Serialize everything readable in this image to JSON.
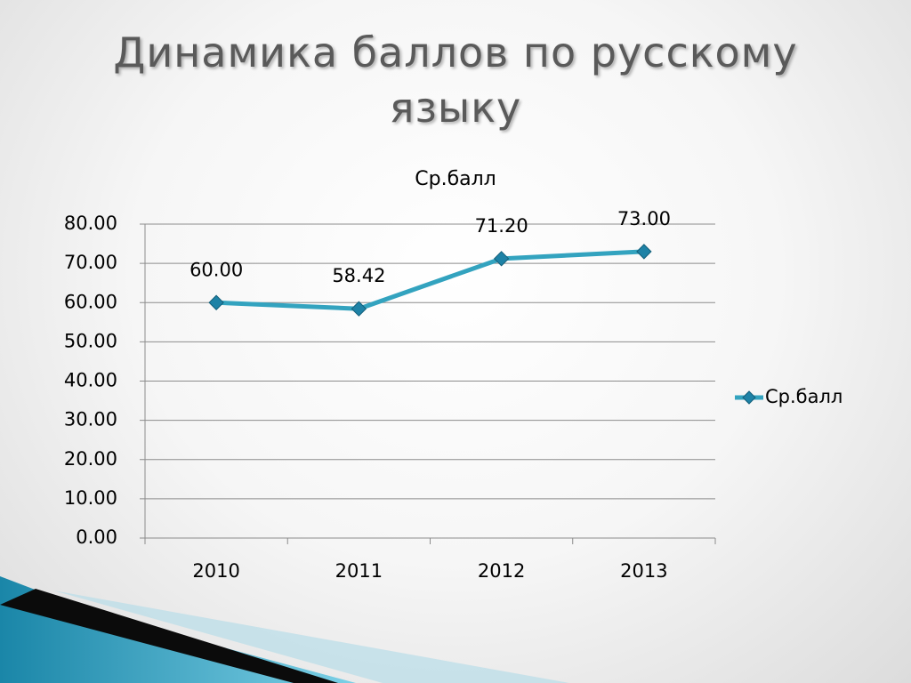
{
  "chart_data": {
    "type": "line",
    "title": "Динамика баллов по русскому языку",
    "subtitle": "Ср.балл",
    "categories": [
      "2010",
      "2011",
      "2012",
      "2013"
    ],
    "series": [
      {
        "name": "Ср.балл",
        "color": "#33a3bf",
        "values": [
          60,
          58.42,
          71.2,
          73
        ],
        "value_labels": [
          "60.00",
          "58.42",
          "71.20",
          "73.00"
        ]
      }
    ],
    "ylim": [
      0,
      80
    ],
    "yticks": [
      {
        "value": 0,
        "label": "0.00"
      },
      {
        "value": 10,
        "label": "10.00"
      },
      {
        "value": 20,
        "label": "20.00"
      },
      {
        "value": 30,
        "label": "30.00"
      },
      {
        "value": 40,
        "label": "40.00"
      },
      {
        "value": 50,
        "label": "50.00"
      },
      {
        "value": 60,
        "label": "60.00"
      },
      {
        "value": 70,
        "label": "70.00"
      },
      {
        "value": 80,
        "label": "80.00"
      }
    ],
    "grid": true,
    "legend": "right"
  }
}
